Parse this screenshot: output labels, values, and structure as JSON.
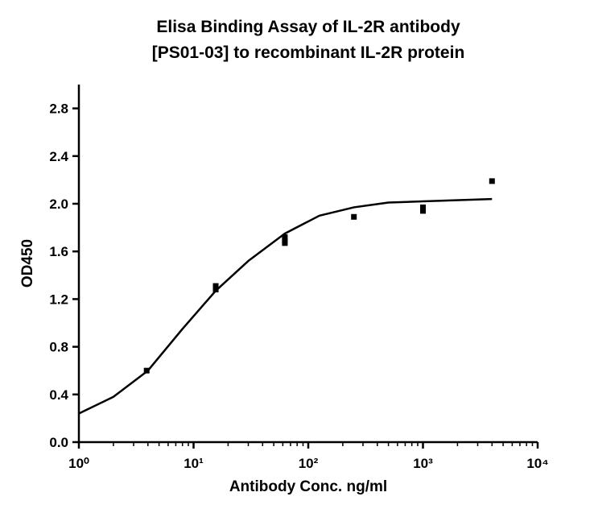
{
  "chart_data": {
    "type": "scatter",
    "title": [
      "Elisa Binding Assay of IL-2R antibody",
      "[PS01-03] to recombinant IL-2R protein"
    ],
    "x_label": "Antibody Conc. ng/ml",
    "y_label": "OD450",
    "x_scale": "log",
    "xlim": [
      1,
      10000
    ],
    "xticks": [
      {
        "value": 1,
        "label": "10⁰"
      },
      {
        "value": 10,
        "label": "10¹"
      },
      {
        "value": 100,
        "label": "10²"
      },
      {
        "value": 1000,
        "label": "10³"
      },
      {
        "value": 10000,
        "label": "10⁴"
      }
    ],
    "ylim": [
      0,
      3.0
    ],
    "yticks": [
      {
        "value": 0,
        "label": "0.0"
      },
      0.4,
      0.8,
      1.2,
      1.6,
      {
        "value": 2,
        "label": "2.0"
      },
      2.4,
      2.8
    ],
    "series": [
      {
        "type": "scatter",
        "color": "#000000",
        "x": [
          3.9,
          15.6,
          15.6,
          62.5,
          62.5,
          62.5,
          250,
          1000,
          1000,
          4000
        ],
        "values": [
          0.6,
          1.31,
          1.28,
          1.72,
          1.69,
          1.67,
          1.89,
          1.97,
          1.94,
          2.19
        ]
      },
      {
        "type": "line",
        "color": "#000000",
        "x": [
          1,
          2,
          4,
          8,
          15.6,
          30,
          62.5,
          125,
          250,
          500,
          1000,
          4000
        ],
        "values": [
          0.24,
          0.38,
          0.6,
          0.95,
          1.27,
          1.52,
          1.75,
          1.9,
          1.97,
          2.01,
          2.02,
          2.04
        ]
      }
    ]
  }
}
